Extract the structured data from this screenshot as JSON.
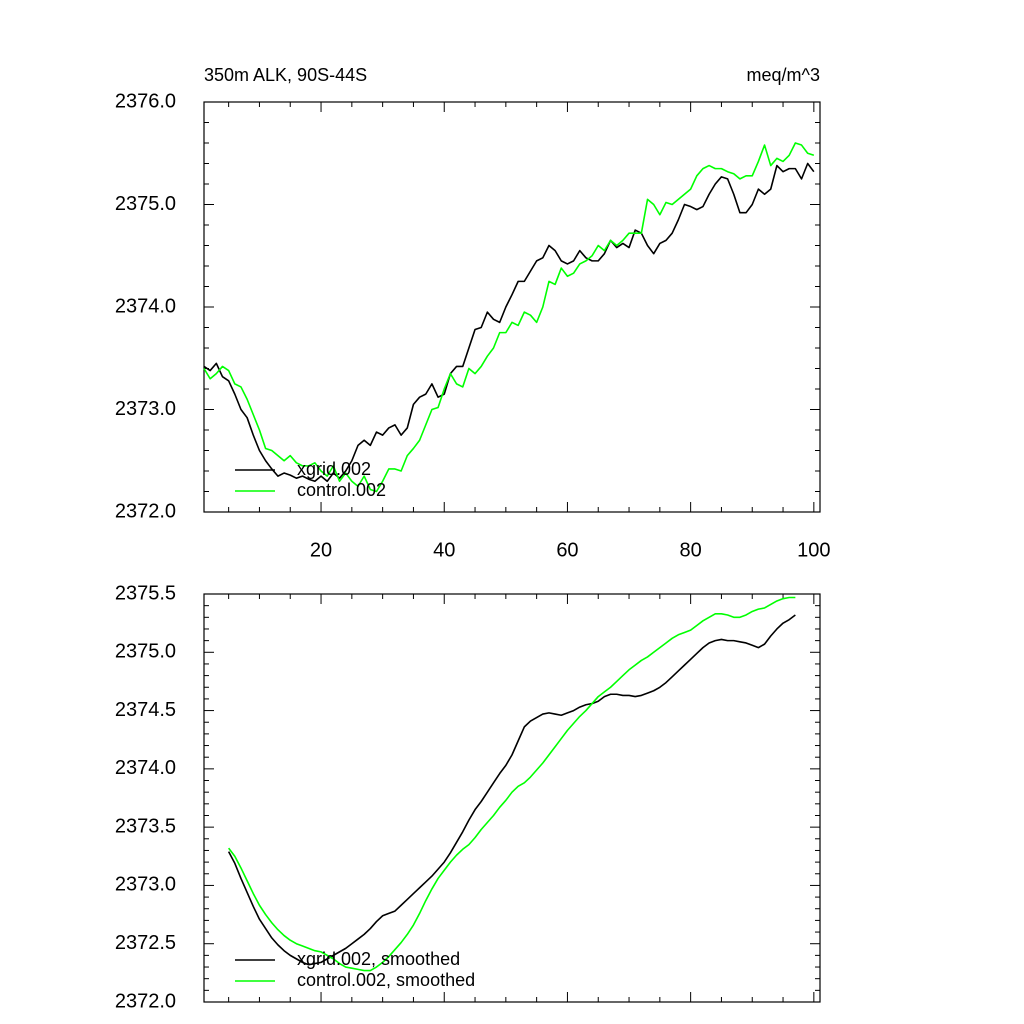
{
  "chart_data": [
    {
      "type": "line",
      "title": "350m ALK, 90S-44S",
      "units": "meq/m^3",
      "legend": "lower left",
      "x": [
        1,
        2,
        3,
        4,
        5,
        6,
        7,
        8,
        9,
        10,
        11,
        12,
        13,
        14,
        15,
        16,
        17,
        18,
        19,
        20,
        21,
        22,
        23,
        24,
        25,
        26,
        27,
        28,
        29,
        30,
        31,
        32,
        33,
        34,
        35,
        36,
        37,
        38,
        39,
        40,
        41,
        42,
        43,
        44,
        45,
        46,
        47,
        48,
        49,
        50,
        51,
        52,
        53,
        54,
        55,
        56,
        57,
        58,
        59,
        60,
        61,
        62,
        63,
        64,
        65,
        66,
        67,
        68,
        69,
        70,
        71,
        72,
        73,
        74,
        75,
        76,
        77,
        78,
        79,
        80,
        81,
        82,
        83,
        84,
        85,
        86,
        87,
        88,
        89,
        90,
        91,
        92,
        93,
        94,
        95,
        96,
        97,
        98,
        99,
        100
      ],
      "series": [
        {
          "name": "xgrid.002",
          "color": "#000000",
          "values": [
            2373.42,
            2373.38,
            2373.45,
            2373.32,
            2373.28,
            2373.15,
            2373.0,
            2372.92,
            2372.75,
            2372.6,
            2372.5,
            2372.42,
            2372.35,
            2372.38,
            2372.36,
            2372.33,
            2372.35,
            2372.32,
            2372.3,
            2372.35,
            2372.3,
            2372.38,
            2372.33,
            2372.4,
            2372.5,
            2372.65,
            2372.7,
            2372.65,
            2372.78,
            2372.75,
            2372.82,
            2372.85,
            2372.75,
            2372.82,
            2373.05,
            2373.12,
            2373.15,
            2373.25,
            2373.12,
            2373.15,
            2373.35,
            2373.42,
            2373.42,
            2373.6,
            2373.78,
            2373.8,
            2373.95,
            2373.88,
            2373.85,
            2374.0,
            2374.12,
            2374.25,
            2374.25,
            2374.35,
            2374.45,
            2374.48,
            2374.6,
            2374.55,
            2374.45,
            2374.42,
            2374.45,
            2374.55,
            2374.48,
            2374.45,
            2374.45,
            2374.52,
            2374.65,
            2374.58,
            2374.62,
            2374.58,
            2374.75,
            2374.72,
            2374.6,
            2374.52,
            2374.62,
            2374.65,
            2374.72,
            2374.85,
            2375.0,
            2374.98,
            2374.95,
            2374.98,
            2375.1,
            2375.2,
            2375.27,
            2375.25,
            2375.1,
            2374.92,
            2374.92,
            2375.0,
            2375.15,
            2375.1,
            2375.15,
            2375.38,
            2375.32,
            2375.35,
            2375.35,
            2375.25,
            2375.4,
            2375.32
          ]
        },
        {
          "name": "control.002",
          "color": "#00ff00",
          "values": [
            2373.4,
            2373.3,
            2373.35,
            2373.42,
            2373.38,
            2373.25,
            2373.22,
            2373.1,
            2372.95,
            2372.8,
            2372.62,
            2372.6,
            2372.55,
            2372.5,
            2372.55,
            2372.48,
            2372.45,
            2372.45,
            2372.48,
            2372.4,
            2372.35,
            2372.45,
            2372.3,
            2372.38,
            2372.3,
            2372.25,
            2372.35,
            2372.22,
            2372.2,
            2372.3,
            2372.42,
            2372.42,
            2372.4,
            2372.55,
            2372.62,
            2372.7,
            2372.85,
            2373.0,
            2373.02,
            2373.2,
            2373.35,
            2373.25,
            2373.22,
            2373.4,
            2373.35,
            2373.42,
            2373.52,
            2373.6,
            2373.75,
            2373.75,
            2373.85,
            2373.82,
            2373.95,
            2373.92,
            2373.85,
            2374.0,
            2374.25,
            2374.22,
            2374.38,
            2374.3,
            2374.33,
            2374.42,
            2374.45,
            2374.5,
            2374.6,
            2374.55,
            2374.65,
            2374.6,
            2374.65,
            2374.72,
            2374.72,
            2374.72,
            2375.05,
            2375.0,
            2374.9,
            2375.02,
            2375.0,
            2375.05,
            2375.1,
            2375.15,
            2375.28,
            2375.35,
            2375.38,
            2375.35,
            2375.35,
            2375.32,
            2375.3,
            2375.25,
            2375.28,
            2375.28,
            2375.42,
            2375.58,
            2375.38,
            2375.45,
            2375.42,
            2375.48,
            2375.6,
            2375.58,
            2375.5,
            2375.48
          ]
        }
      ],
      "xlim": [
        1,
        101
      ],
      "xticks": [
        20,
        40,
        60,
        80,
        100
      ],
      "xtick_labels": true,
      "ylim": [
        2372,
        2376
      ],
      "yticks": [
        {
          "value": 2372,
          "label": "2372.0"
        },
        {
          "value": 2373,
          "label": "2373.0"
        },
        {
          "value": 2374,
          "label": "2374.0"
        },
        {
          "value": 2375,
          "label": "2375.0"
        },
        {
          "value": 2376,
          "label": "2376.0"
        }
      ]
    },
    {
      "type": "line",
      "legend": "lower left",
      "x": [
        5,
        6,
        7,
        8,
        9,
        10,
        11,
        12,
        13,
        14,
        15,
        16,
        17,
        18,
        19,
        20,
        21,
        22,
        23,
        24,
        25,
        26,
        27,
        28,
        29,
        30,
        31,
        32,
        33,
        34,
        35,
        36,
        37,
        38,
        39,
        40,
        41,
        42,
        43,
        44,
        45,
        46,
        47,
        48,
        49,
        50,
        51,
        52,
        53,
        54,
        55,
        56,
        57,
        58,
        59,
        60,
        61,
        62,
        63,
        64,
        65,
        66,
        67,
        68,
        69,
        70,
        71,
        72,
        73,
        74,
        75,
        76,
        77,
        78,
        79,
        80,
        81,
        82,
        83,
        84,
        85,
        86,
        87,
        88,
        89,
        90,
        91,
        92,
        93,
        94,
        95,
        96,
        97
      ],
      "series": [
        {
          "name": "xgrid.002, smoothed",
          "color": "#000000",
          "values": [
            2373.29,
            2373.19,
            2373.06,
            2372.94,
            2372.82,
            2372.71,
            2372.63,
            2372.55,
            2372.49,
            2372.44,
            2372.4,
            2372.37,
            2372.34,
            2372.32,
            2372.33,
            2372.34,
            2372.37,
            2372.4,
            2372.43,
            2372.46,
            2372.5,
            2372.54,
            2372.58,
            2372.63,
            2372.69,
            2372.74,
            2372.76,
            2372.78,
            2372.83,
            2372.88,
            2372.93,
            2372.98,
            2373.03,
            2373.08,
            2373.14,
            2373.2,
            2373.28,
            2373.37,
            2373.46,
            2373.56,
            2373.65,
            2373.72,
            2373.8,
            2373.88,
            2373.96,
            2374.03,
            2374.12,
            2374.24,
            2374.36,
            2374.41,
            2374.44,
            2374.47,
            2374.48,
            2374.47,
            2374.46,
            2374.48,
            2374.5,
            2374.53,
            2374.55,
            2374.56,
            2374.58,
            2374.62,
            2374.64,
            2374.64,
            2374.63,
            2374.63,
            2374.62,
            2374.63,
            2374.65,
            2374.67,
            2374.7,
            2374.74,
            2374.79,
            2374.84,
            2374.89,
            2374.94,
            2374.99,
            2375.04,
            2375.08,
            2375.1,
            2375.11,
            2375.1,
            2375.1,
            2375.09,
            2375.08,
            2375.06,
            2375.04,
            2375.07,
            2375.14,
            2375.2,
            2375.25,
            2375.28,
            2375.32
          ]
        },
        {
          "name": "control.002, smoothed",
          "color": "#00ff00",
          "values": [
            2373.32,
            2373.25,
            2373.15,
            2373.04,
            2372.93,
            2372.83,
            2372.75,
            2372.68,
            2372.62,
            2372.57,
            2372.53,
            2372.5,
            2372.48,
            2372.46,
            2372.44,
            2372.43,
            2372.4,
            2372.37,
            2372.33,
            2372.3,
            2372.29,
            2372.28,
            2372.27,
            2372.27,
            2372.3,
            2372.34,
            2372.39,
            2372.45,
            2372.51,
            2372.58,
            2372.66,
            2372.76,
            2372.87,
            2372.97,
            2373.06,
            2373.13,
            2373.2,
            2373.26,
            2373.31,
            2373.35,
            2373.41,
            2373.48,
            2373.54,
            2373.6,
            2373.67,
            2373.73,
            2373.8,
            2373.85,
            2373.88,
            2373.93,
            2373.99,
            2374.05,
            2374.12,
            2374.19,
            2374.26,
            2374.33,
            2374.39,
            2374.45,
            2374.5,
            2374.56,
            2374.62,
            2374.66,
            2374.7,
            2374.75,
            2374.8,
            2374.85,
            2374.89,
            2374.93,
            2374.96,
            2375.0,
            2375.04,
            2375.08,
            2375.12,
            2375.15,
            2375.17,
            2375.19,
            2375.23,
            2375.27,
            2375.3,
            2375.33,
            2375.33,
            2375.32,
            2375.3,
            2375.3,
            2375.32,
            2375.35,
            2375.37,
            2375.38,
            2375.41,
            2375.44,
            2375.46,
            2375.47,
            2375.47
          ]
        }
      ],
      "xlim": [
        1,
        101
      ],
      "xticks": [
        20,
        40,
        60,
        80,
        100
      ],
      "xtick_labels": false,
      "ylim": [
        2372,
        2375.5
      ],
      "yticks": [
        {
          "value": 2372,
          "label": "2372.0"
        },
        {
          "value": 2372.5,
          "label": "2372.5"
        },
        {
          "value": 2373,
          "label": "2373.0"
        },
        2373.5,
        {
          "value": 2374,
          "label": "2374.0"
        },
        2374.5,
        {
          "value": 2375,
          "label": "2375.0"
        },
        2375.5
      ]
    }
  ]
}
